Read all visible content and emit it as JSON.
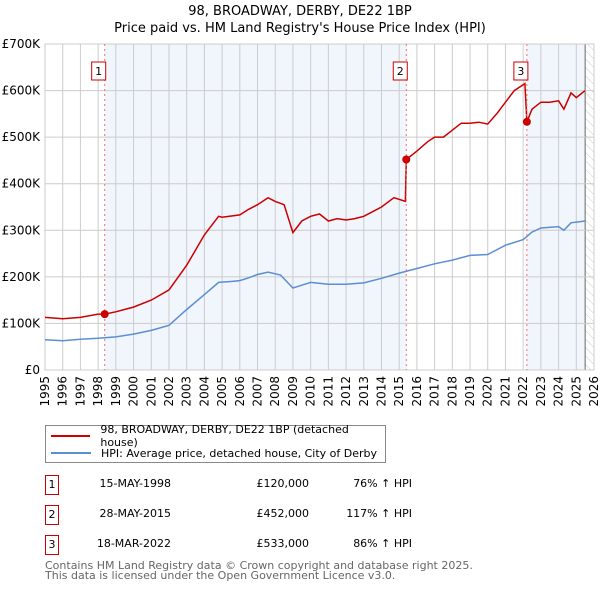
{
  "chart_data": {
    "type": "line",
    "title": "98, BROADWAY, DERBY, DE22 1BP",
    "subtitle": "Price paid vs. HM Land Registry's House Price Index (HPI)",
    "xlim": [
      1995,
      2026
    ],
    "ylim": [
      0,
      700000
    ],
    "x_ticks": [
      "1995",
      "1996",
      "1997",
      "1998",
      "1999",
      "2000",
      "2001",
      "2002",
      "2003",
      "2004",
      "2005",
      "2006",
      "2007",
      "2008",
      "2009",
      "2010",
      "2011",
      "2012",
      "2013",
      "2014",
      "2015",
      "2016",
      "2017",
      "2018",
      "2019",
      "2020",
      "2021",
      "2022",
      "2023",
      "2024",
      "2025",
      "2026"
    ],
    "y_ticks": [
      {
        "v": 0,
        "label": "£0"
      },
      {
        "v": 100000,
        "label": "£100K"
      },
      {
        "v": 200000,
        "label": "£200K"
      },
      {
        "v": 300000,
        "label": "£300K"
      },
      {
        "v": 400000,
        "label": "£400K"
      },
      {
        "v": 500000,
        "label": "£500K"
      },
      {
        "v": 600000,
        "label": "£600K"
      },
      {
        "v": 700000,
        "label": "£700K"
      }
    ],
    "grid": true,
    "series": [
      {
        "name": "98, BROADWAY, DERBY, DE22 1BP (detached house)",
        "color": "#cc0000",
        "x": [
          1995,
          1996,
          1997,
          1998,
          1998.37,
          1999,
          2000,
          2001,
          2002,
          2003,
          2004,
          2004.8,
          2005,
          2006,
          2006.5,
          2007,
          2007.6,
          2008,
          2008.5,
          2009,
          2009.5,
          2010,
          2010.5,
          2011,
          2011.5,
          2012,
          2012.5,
          2013,
          2013.5,
          2014,
          2014.7,
          2015.35,
          2015.4,
          2016,
          2016.6,
          2017,
          2017.5,
          2018,
          2018.5,
          2019,
          2019.5,
          2020,
          2020.5,
          2021,
          2021.5,
          2022.1,
          2022.21,
          2022.5,
          2023,
          2023.5,
          2024,
          2024.3,
          2024.7,
          2025,
          2025.5
        ],
        "y": [
          113000,
          110000,
          113000,
          120000,
          120000,
          125000,
          135000,
          150000,
          172000,
          225000,
          290000,
          330000,
          328000,
          333000,
          345000,
          355000,
          370000,
          362000,
          355000,
          295000,
          320000,
          330000,
          335000,
          320000,
          325000,
          322000,
          325000,
          330000,
          340000,
          350000,
          370000,
          362000,
          452000,
          470000,
          490000,
          500000,
          500000,
          515000,
          530000,
          530000,
          532000,
          528000,
          550000,
          575000,
          600000,
          615000,
          533000,
          560000,
          575000,
          575000,
          578000,
          560000,
          595000,
          585000,
          600000
        ]
      },
      {
        "name": "HPI: Average price, detached house, City of Derby",
        "color": "#5b8fd4",
        "x": [
          1995,
          1996,
          1997,
          1998,
          1999,
          2000,
          2001,
          2002,
          2003,
          2004,
          2004.8,
          2005.5,
          2006,
          2006.5,
          2007,
          2007.6,
          2008.3,
          2009,
          2009.5,
          2010,
          2011,
          2012,
          2013,
          2014,
          2015,
          2016,
          2017,
          2018,
          2019,
          2020,
          2021,
          2022,
          2022.5,
          2023,
          2024,
          2024.3,
          2024.7,
          2025.5
        ],
        "y": [
          65000,
          63000,
          66000,
          68000,
          71000,
          77000,
          85000,
          96000,
          130000,
          162000,
          188000,
          190000,
          192000,
          198000,
          205000,
          210000,
          204000,
          176000,
          182000,
          188000,
          184000,
          184000,
          187000,
          197000,
          208000,
          218000,
          228000,
          236000,
          246000,
          248000,
          268000,
          280000,
          296000,
          305000,
          308000,
          300000,
          316000,
          320000
        ]
      }
    ],
    "sales": [
      {
        "n": "1",
        "x": 1998.37,
        "y": 120000,
        "date": "15-MAY-1998",
        "price": "£120,000",
        "hpi": "76% ↑ HPI"
      },
      {
        "n": "2",
        "x": 2015.4,
        "y": 452000,
        "date": "28-MAY-2015",
        "price": "£452,000",
        "hpi": "117% ↑ HPI"
      },
      {
        "n": "3",
        "x": 2022.21,
        "y": 533000,
        "date": "18-MAR-2022",
        "price": "£533,000",
        "hpi": "86% ↑ HPI"
      }
    ],
    "shaded_ranges": [
      [
        1998.37,
        2015.4
      ],
      [
        2022.21,
        2025.5
      ]
    ],
    "forecast_start": 2025.5,
    "legend_placement": "below"
  },
  "footer": {
    "line1": "Contains HM Land Registry data © Crown copyright and database right 2025.",
    "line2": "This data is licensed under the Open Government Licence v3.0."
  }
}
